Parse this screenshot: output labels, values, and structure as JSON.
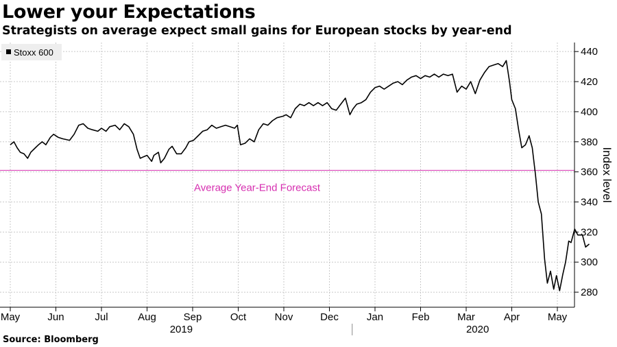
{
  "title": "Lower your Expectations",
  "subtitle": "Strategists on average expect small gains for European stocks by year-end",
  "source": "Source: Bloomberg",
  "colors": {
    "series": "#000000",
    "forecast": "#d62fb0",
    "grid": "#c8c8c8",
    "legend_bg": "#eeeeee"
  },
  "chart_data": {
    "type": "line",
    "title": "Lower your Expectations",
    "ylabel": "Index level",
    "xlabel": "",
    "ylim": [
      270,
      446
    ],
    "yticks": [
      280,
      300,
      320,
      340,
      360,
      380,
      400,
      420,
      440
    ],
    "x_unit": "months since 2019-05-01",
    "xlim": [
      0,
      12.7
    ],
    "x_ticks": [
      {
        "label": "May",
        "x": 0
      },
      {
        "label": "Jun",
        "x": 1
      },
      {
        "label": "Jul",
        "x": 2
      },
      {
        "label": "Aug",
        "x": 3
      },
      {
        "label": "Sep",
        "x": 4
      },
      {
        "label": "Oct",
        "x": 5
      },
      {
        "label": "Nov",
        "x": 6
      },
      {
        "label": "Dec",
        "x": 7
      },
      {
        "label": "Jan",
        "x": 8
      },
      {
        "label": "Feb",
        "x": 9
      },
      {
        "label": "Mar",
        "x": 10
      },
      {
        "label": "Apr",
        "x": 11
      },
      {
        "label": "May",
        "x": 12
      }
    ],
    "year_labels": [
      {
        "label": "2019",
        "x": 3.75
      },
      {
        "label": "2020",
        "x": 10.25
      }
    ],
    "year_divider": 7.5,
    "legend": [
      {
        "name": "Stoxx 600"
      }
    ],
    "reference_line": {
      "label": "Average Year-End Forecast",
      "value": 361
    },
    "series": [
      {
        "name": "Stoxx 600",
        "points": [
          [
            0.0,
            378
          ],
          [
            0.08,
            380
          ],
          [
            0.15,
            376
          ],
          [
            0.22,
            373
          ],
          [
            0.3,
            372
          ],
          [
            0.38,
            369
          ],
          [
            0.45,
            373
          ],
          [
            0.55,
            376
          ],
          [
            0.62,
            378
          ],
          [
            0.7,
            380
          ],
          [
            0.78,
            378
          ],
          [
            0.88,
            383
          ],
          [
            0.95,
            385
          ],
          [
            1.05,
            383
          ],
          [
            1.15,
            382
          ],
          [
            1.3,
            381
          ],
          [
            1.4,
            385
          ],
          [
            1.5,
            391
          ],
          [
            1.6,
            392
          ],
          [
            1.7,
            389
          ],
          [
            1.8,
            388
          ],
          [
            1.92,
            387
          ],
          [
            2.0,
            389
          ],
          [
            2.1,
            387
          ],
          [
            2.18,
            390
          ],
          [
            2.3,
            391
          ],
          [
            2.4,
            388
          ],
          [
            2.5,
            392
          ],
          [
            2.6,
            390
          ],
          [
            2.7,
            385
          ],
          [
            2.78,
            375
          ],
          [
            2.85,
            369
          ],
          [
            2.92,
            370
          ],
          [
            3.0,
            371
          ],
          [
            3.1,
            367
          ],
          [
            3.15,
            371
          ],
          [
            3.25,
            373
          ],
          [
            3.3,
            366
          ],
          [
            3.38,
            369
          ],
          [
            3.48,
            375
          ],
          [
            3.55,
            377
          ],
          [
            3.65,
            372
          ],
          [
            3.75,
            372
          ],
          [
            3.85,
            376
          ],
          [
            3.92,
            380
          ],
          [
            4.02,
            381
          ],
          [
            4.12,
            384
          ],
          [
            4.22,
            387
          ],
          [
            4.32,
            388
          ],
          [
            4.42,
            391
          ],
          [
            4.52,
            389
          ],
          [
            4.62,
            390
          ],
          [
            4.72,
            391
          ],
          [
            4.82,
            390
          ],
          [
            4.92,
            389
          ],
          [
            4.98,
            391
          ],
          [
            5.05,
            378
          ],
          [
            5.15,
            379
          ],
          [
            5.25,
            382
          ],
          [
            5.35,
            380
          ],
          [
            5.45,
            388
          ],
          [
            5.55,
            392
          ],
          [
            5.65,
            391
          ],
          [
            5.75,
            394
          ],
          [
            5.85,
            396
          ],
          [
            5.98,
            397
          ],
          [
            6.05,
            398
          ],
          [
            6.15,
            396
          ],
          [
            6.25,
            402
          ],
          [
            6.35,
            405
          ],
          [
            6.45,
            404
          ],
          [
            6.55,
            406
          ],
          [
            6.65,
            404
          ],
          [
            6.75,
            406
          ],
          [
            6.85,
            404
          ],
          [
            6.95,
            406
          ],
          [
            7.05,
            402
          ],
          [
            7.15,
            401
          ],
          [
            7.25,
            405
          ],
          [
            7.35,
            409
          ],
          [
            7.45,
            398
          ],
          [
            7.52,
            402
          ],
          [
            7.6,
            405
          ],
          [
            7.7,
            406
          ],
          [
            7.8,
            408
          ],
          [
            7.9,
            413
          ],
          [
            8.0,
            416
          ],
          [
            8.1,
            417
          ],
          [
            8.2,
            415
          ],
          [
            8.3,
            417
          ],
          [
            8.4,
            419
          ],
          [
            8.5,
            420
          ],
          [
            8.6,
            418
          ],
          [
            8.7,
            421
          ],
          [
            8.8,
            423
          ],
          [
            8.9,
            424
          ],
          [
            9.0,
            422
          ],
          [
            9.1,
            424
          ],
          [
            9.2,
            423
          ],
          [
            9.3,
            425
          ],
          [
            9.4,
            423
          ],
          [
            9.5,
            425
          ],
          [
            9.6,
            424
          ],
          [
            9.7,
            425
          ],
          [
            9.8,
            413
          ],
          [
            9.9,
            417
          ],
          [
            10.0,
            415
          ],
          [
            10.1,
            420
          ],
          [
            10.2,
            412
          ],
          [
            10.3,
            421
          ],
          [
            10.4,
            426
          ],
          [
            10.5,
            430
          ],
          [
            10.6,
            431
          ],
          [
            10.7,
            432
          ],
          [
            10.8,
            430
          ],
          [
            10.88,
            434
          ],
          [
            10.95,
            420
          ],
          [
            11.0,
            408
          ],
          [
            11.08,
            402
          ],
          [
            11.15,
            388
          ],
          [
            11.22,
            376
          ],
          [
            11.3,
            378
          ],
          [
            11.38,
            384
          ],
          [
            11.45,
            376
          ],
          [
            11.52,
            358
          ],
          [
            11.58,
            340
          ],
          [
            11.65,
            332
          ],
          [
            11.72,
            302
          ],
          [
            11.78,
            286
          ],
          [
            11.85,
            294
          ],
          [
            11.92,
            282
          ],
          [
            11.98,
            291
          ],
          [
            12.05,
            281
          ],
          [
            12.12,
            292
          ],
          [
            12.18,
            300
          ],
          [
            12.25,
            314
          ],
          [
            12.3,
            313
          ],
          [
            12.38,
            322
          ],
          [
            12.45,
            318
          ],
          [
            12.55,
            318
          ],
          [
            12.62,
            310
          ],
          [
            12.7,
            312
          ]
        ]
      }
    ]
  }
}
